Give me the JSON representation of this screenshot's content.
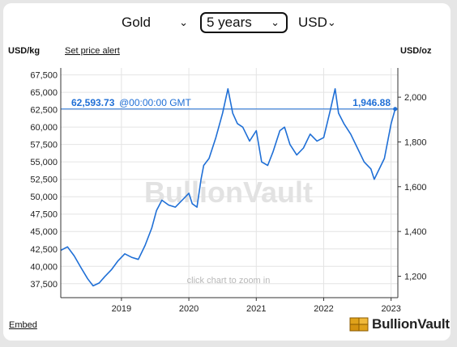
{
  "controls": {
    "metal": "Gold",
    "period": "5 years",
    "currency": "USD"
  },
  "header": {
    "left_unit": "USD/kg",
    "alert_link": "Set price alert",
    "right_unit": "USD/oz"
  },
  "footer": {
    "embed_link": "Embed",
    "logo_text": "BullionVault"
  },
  "colors": {
    "line": "#1f6fd6",
    "crosshair": "#1f6fd6",
    "readout": "#1f6fd6",
    "grid": "#e4e4e4",
    "watermark": "#e2e2e2"
  },
  "chart_data": {
    "type": "line",
    "watermark": "BullionVault",
    "zoom_hint": "click chart to zoom in",
    "readout": {
      "kg_value": "62,593.73",
      "time": "@00:00:00 GMT",
      "oz_value": "1,946.88"
    },
    "x_ticks": [
      "2019",
      "2020",
      "2021",
      "2022",
      "2023"
    ],
    "xlim": [
      2018.1,
      2023.1
    ],
    "left_axis": {
      "unit": "USD/kg",
      "ylim": [
        35500,
        68500
      ],
      "ticks": [
        37500,
        40000,
        42500,
        45000,
        47500,
        50000,
        52500,
        55000,
        57500,
        60000,
        62500,
        65000,
        67500
      ],
      "tick_labels": [
        "37,500",
        "40,000",
        "42,500",
        "45,000",
        "47,500",
        "50,000",
        "52,500",
        "55,000",
        "57,500",
        "60,000",
        "62,500",
        "65,000",
        "67,500"
      ]
    },
    "right_axis": {
      "unit": "USD/oz",
      "ticks": [
        1200,
        1400,
        1600,
        1800,
        2000
      ],
      "tick_labels": [
        "1,200",
        "1,400",
        "1,600",
        "1,800",
        "2,000"
      ]
    },
    "series": [
      {
        "x": [
          2018.1,
          2018.2,
          2018.3,
          2018.4,
          2018.5,
          2018.58,
          2018.67,
          2018.75,
          2018.85,
          2018.95,
          2019.05,
          2019.15,
          2019.25,
          2019.35,
          2019.45,
          2019.52,
          2019.6,
          2019.7,
          2019.8,
          2019.9,
          2020.0,
          2020.05,
          2020.12,
          2020.18,
          2020.22,
          2020.3,
          2020.4,
          2020.5,
          2020.58,
          2020.65,
          2020.72,
          2020.8,
          2020.9,
          2021.0,
          2021.08,
          2021.17,
          2021.25,
          2021.35,
          2021.42,
          2021.5,
          2021.6,
          2021.7,
          2021.8,
          2021.9,
          2022.0,
          2022.1,
          2022.17,
          2022.22,
          2022.3,
          2022.4,
          2022.5,
          2022.6,
          2022.7,
          2022.75,
          2022.8,
          2022.9,
          2023.0,
          2023.06
        ],
        "values": [
          42300,
          42800,
          41500,
          39800,
          38200,
          37200,
          37600,
          38500,
          39500,
          40800,
          41800,
          41300,
          41000,
          43000,
          45500,
          48000,
          49500,
          48800,
          48500,
          49500,
          50500,
          49000,
          48500,
          52500,
          54500,
          55500,
          58500,
          62000,
          65500,
          62000,
          60500,
          60000,
          58000,
          59500,
          55000,
          54500,
          56500,
          59500,
          60000,
          57500,
          56000,
          57000,
          59000,
          58000,
          58500,
          62500,
          65500,
          62000,
          60500,
          59000,
          57000,
          55000,
          54000,
          52500,
          53500,
          55500,
          60500,
          62600
        ]
      }
    ]
  }
}
